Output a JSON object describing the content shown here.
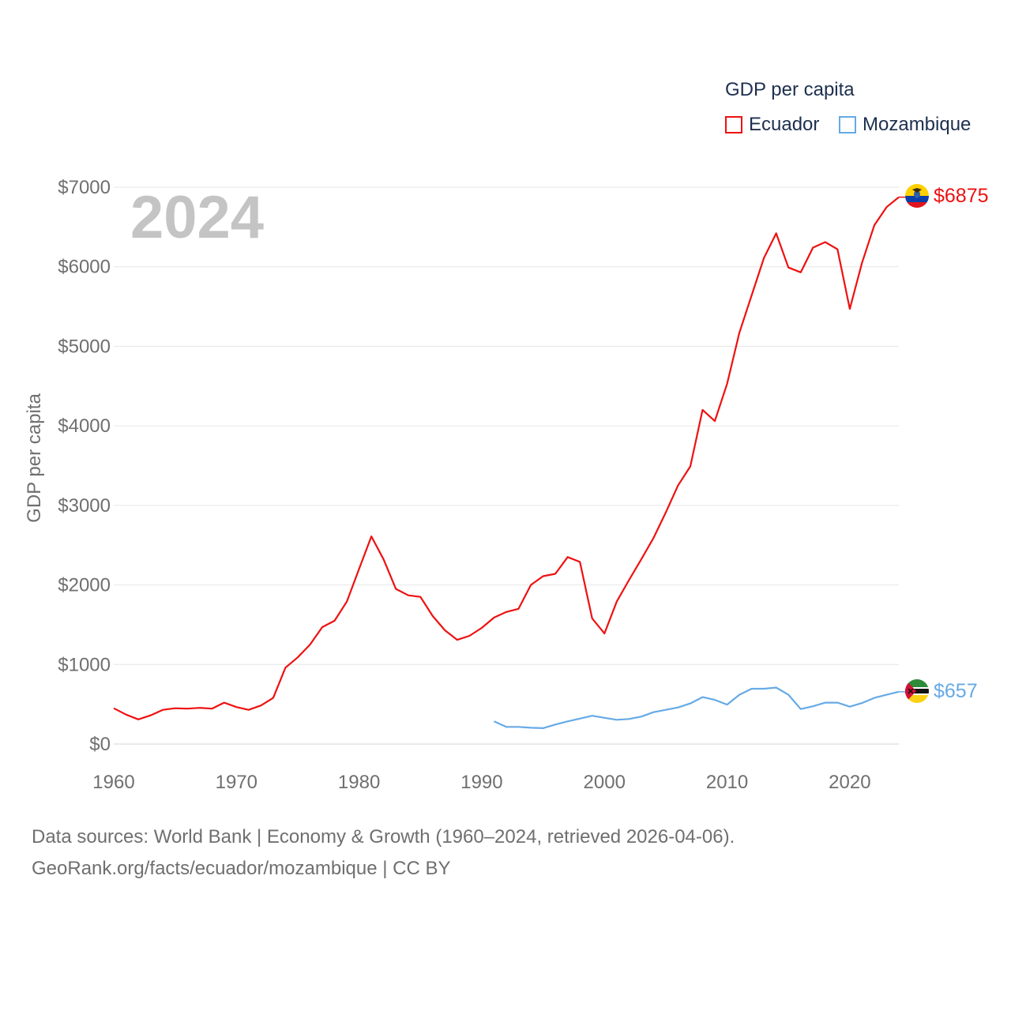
{
  "legend": {
    "title": "GDP per capita",
    "items": [
      {
        "label": "Ecuador",
        "color": "#ee1111"
      },
      {
        "label": "Mozambique",
        "color": "#66aae6"
      }
    ]
  },
  "current_year": "2024",
  "footer": {
    "line1": "Data sources: World Bank | Economy & Growth (1960–2024, retrieved 2026-04-06).",
    "line2": "GeoRank.org/facts/ecuador/mozambique | CC BY"
  },
  "chart_data": {
    "type": "line",
    "title": "",
    "xlabel": "",
    "ylabel": "GDP per capita",
    "xlim": [
      1960,
      2024
    ],
    "ylim": [
      0,
      7000
    ],
    "x_ticks": [
      1960,
      1970,
      1980,
      1990,
      2000,
      2010,
      2020
    ],
    "y_ticks": [
      0,
      1000,
      2000,
      3000,
      4000,
      5000,
      6000,
      7000
    ],
    "y_tick_labels": [
      "$0",
      "$1000",
      "$2000",
      "$3000",
      "$4000",
      "$5000",
      "$6000",
      "$7000"
    ],
    "grid": true,
    "series": [
      {
        "name": "Ecuador",
        "color": "#ee1111",
        "end_label": "$6875",
        "x": [
          1960,
          1961,
          1962,
          1963,
          1964,
          1965,
          1966,
          1967,
          1968,
          1969,
          1970,
          1971,
          1972,
          1973,
          1974,
          1975,
          1976,
          1977,
          1978,
          1979,
          1980,
          1981,
          1982,
          1983,
          1984,
          1985,
          1986,
          1987,
          1988,
          1989,
          1990,
          1991,
          1992,
          1993,
          1994,
          1995,
          1996,
          1997,
          1998,
          1999,
          2000,
          2001,
          2002,
          2003,
          2004,
          2005,
          2006,
          2007,
          2008,
          2009,
          2010,
          2011,
          2012,
          2013,
          2014,
          2015,
          2016,
          2017,
          2018,
          2019,
          2020,
          2021,
          2022,
          2023,
          2024
        ],
        "values": [
          450,
          370,
          310,
          360,
          430,
          450,
          445,
          455,
          445,
          520,
          465,
          430,
          485,
          580,
          960,
          1090,
          1250,
          1470,
          1550,
          1790,
          2200,
          2610,
          2320,
          1950,
          1870,
          1850,
          1610,
          1430,
          1310,
          1360,
          1460,
          1590,
          1660,
          1700,
          2000,
          2110,
          2140,
          2350,
          2290,
          1580,
          1390,
          1790,
          2060,
          2320,
          2590,
          2910,
          3250,
          3490,
          4200,
          4060,
          4530,
          5170,
          5640,
          6110,
          6420,
          5990,
          5930,
          6240,
          6310,
          6220,
          5470,
          6050,
          6520,
          6750,
          6875
        ]
      },
      {
        "name": "Mozambique",
        "color": "#66aae6",
        "end_label": "$657",
        "x": [
          1991,
          1992,
          1993,
          1994,
          1995,
          1996,
          1997,
          1998,
          1999,
          2000,
          2001,
          2002,
          2003,
          2004,
          2005,
          2006,
          2007,
          2008,
          2009,
          2010,
          2011,
          2012,
          2013,
          2014,
          2015,
          2016,
          2017,
          2018,
          2019,
          2020,
          2021,
          2022,
          2023,
          2024
        ],
        "values": [
          285,
          215,
          215,
          205,
          200,
          245,
          285,
          320,
          355,
          330,
          305,
          315,
          345,
          400,
          430,
          460,
          510,
          590,
          555,
          495,
          620,
          695,
          695,
          710,
          620,
          440,
          475,
          520,
          520,
          470,
          515,
          580,
          620,
          657
        ]
      }
    ]
  }
}
